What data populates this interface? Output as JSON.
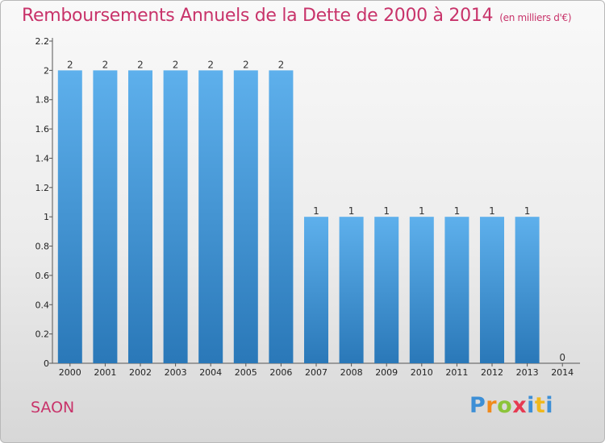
{
  "header": {
    "title": "Remboursements Annuels de la Dette de 2000 à 2014",
    "unit": "(en milliers d'€)"
  },
  "footer": {
    "commune": "SAON",
    "brand": "Proxiti"
  },
  "colors": {
    "title": "#c8336a",
    "bar_top": "#5eb0ec",
    "bar_bottom": "#2a78b8",
    "axis": "#555555"
  },
  "chart_data": {
    "type": "bar",
    "title": "Remboursements Annuels de la Dette de 2000 à 2014",
    "subtitle": "(en milliers d'€)",
    "xlabel": "",
    "ylabel": "",
    "categories": [
      "2000",
      "2001",
      "2002",
      "2003",
      "2004",
      "2005",
      "2006",
      "2007",
      "2008",
      "2009",
      "2010",
      "2011",
      "2012",
      "2013",
      "2014"
    ],
    "values": [
      2,
      2,
      2,
      2,
      2,
      2,
      2,
      1,
      1,
      1,
      1,
      1,
      1,
      1,
      0
    ],
    "data_labels": [
      "2",
      "2",
      "2",
      "2",
      "2",
      "2",
      "2",
      "1",
      "1",
      "1",
      "1",
      "1",
      "1",
      "1",
      "0"
    ],
    "ylim": [
      0,
      2.2
    ],
    "yticks": [
      0,
      0.2,
      0.4,
      0.6,
      0.8,
      1,
      1.2,
      1.4,
      1.6,
      1.8,
      2,
      2.2
    ],
    "ytick_labels": [
      "0",
      "0.2",
      "0.4",
      "0.6",
      "0.8",
      "1",
      "1.2",
      "1.4",
      "1.6",
      "1.8",
      "2",
      "2.2"
    ],
    "grid": false,
    "legend": "none"
  }
}
